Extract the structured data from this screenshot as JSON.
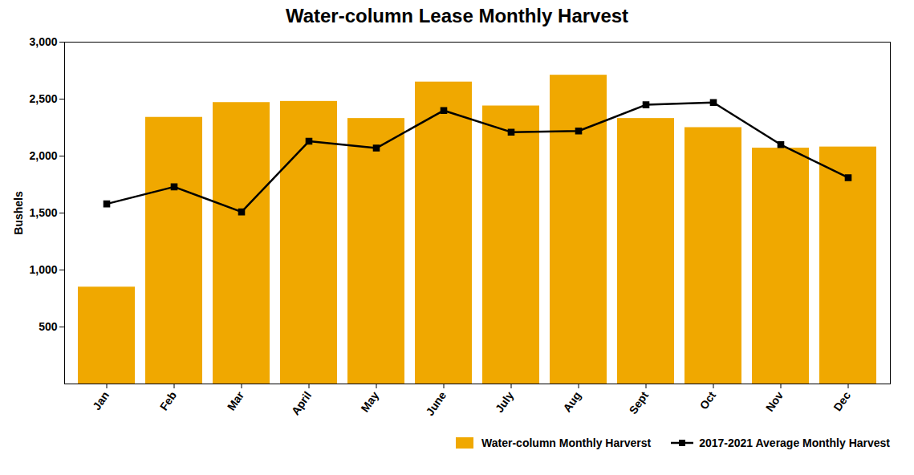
{
  "chart_data": {
    "type": "bar",
    "title": "Water-column Lease Monthly Harvest",
    "categories": [
      "Jan",
      "Feb",
      "Mar",
      "April",
      "May",
      "June",
      "July",
      "Aug",
      "Sept",
      "Oct",
      "Nov",
      "Dec"
    ],
    "series": [
      {
        "name": "Water-column Monthly Harverst",
        "type": "bar",
        "color": "#F0A800",
        "values": [
          850,
          2340,
          2470,
          2480,
          2330,
          2650,
          2440,
          2710,
          2330,
          2250,
          2070,
          2080
        ]
      },
      {
        "name": "2017-2021 Average Monthly Harvest",
        "type": "line",
        "color": "#000000",
        "marker": "square",
        "values": [
          1580,
          1730,
          1510,
          2130,
          2070,
          2400,
          2210,
          2220,
          2450,
          2470,
          2100,
          1810
        ]
      }
    ],
    "ylabel": "Bushels",
    "ylim": [
      0,
      3000
    ],
    "yticks": [
      500,
      {
        "value": 1000,
        "label": "1,000"
      },
      {
        "value": 1500,
        "label": "1,500"
      },
      {
        "value": 2000,
        "label": "2,000"
      },
      {
        "value": 2500,
        "label": "2,500"
      },
      {
        "value": 3000,
        "label": "3,000"
      }
    ],
    "grid": false,
    "legend": "lower right"
  }
}
